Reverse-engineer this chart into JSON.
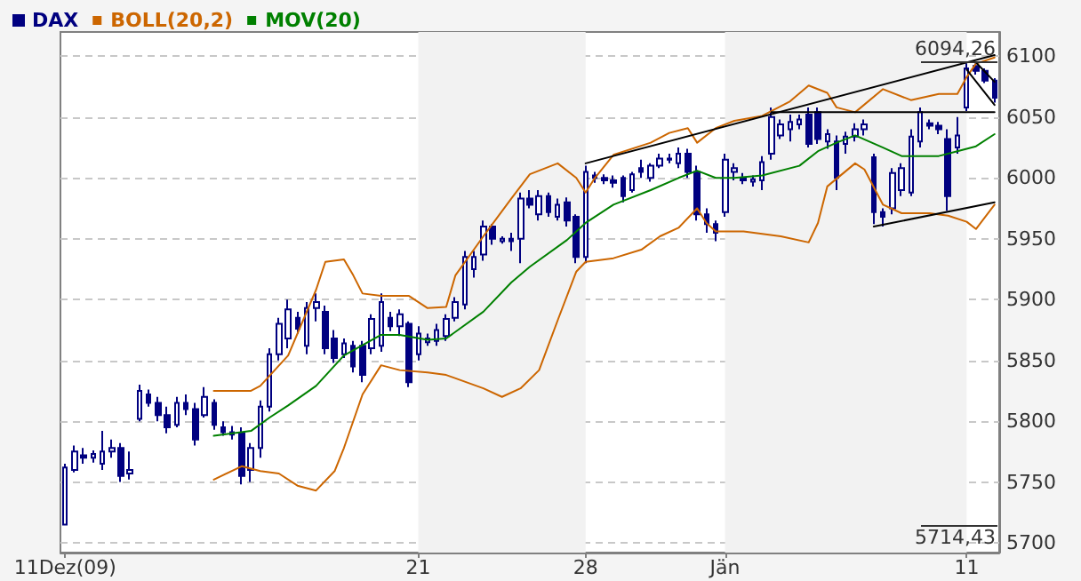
{
  "chart_data": {
    "type": "candlestick",
    "legend": "top left",
    "grid": "y",
    "marker": "none",
    "categories": [
      "11Dez(09)",
      null,
      null,
      null,
      null,
      null,
      null,
      null,
      null,
      null,
      null,
      null,
      null,
      null,
      null,
      null,
      null,
      null,
      null,
      null,
      null,
      null,
      null,
      null,
      null,
      null,
      null,
      null,
      null,
      null,
      null,
      null,
      null,
      null,
      null,
      null,
      null,
      null,
      "21",
      null,
      null,
      null,
      null,
      null,
      null,
      null,
      null,
      null,
      null,
      null,
      null,
      null,
      null,
      null,
      null,
      null,
      "28",
      null,
      null,
      null,
      null,
      null,
      null,
      null,
      null,
      null,
      null,
      null,
      null,
      null,
      null,
      "Jän",
      null,
      null,
      null,
      null,
      null,
      null,
      null,
      null,
      null,
      null,
      null,
      null,
      null,
      null,
      null,
      null,
      null,
      null,
      null,
      null,
      null,
      null,
      null,
      null,
      null,
      "11",
      null,
      null,
      null
    ],
    "ylim": [
      5692,
      6120
    ],
    "yticks": [
      5700,
      5750,
      5800,
      5850,
      5900,
      5950,
      6000,
      6050,
      6100
    ],
    "bands": [
      {
        "axis": "x",
        "from": "21",
        "to": "28",
        "color": "#f2f2f2"
      },
      {
        "axis": "x",
        "from": "Jän",
        "to": "11",
        "color": "#f2f2f2"
      }
    ],
    "annotations": [
      "6094,26",
      "5714,43"
    ],
    "series": [
      {
        "name": "DAX",
        "color": "#000080",
        "ohlc": [
          [
            5715,
            5765,
            5714.43,
            5762
          ],
          [
            5760,
            5780,
            5758,
            5775
          ],
          [
            5772,
            5778,
            5765,
            5770
          ],
          [
            5770,
            5776,
            5766,
            5773
          ],
          [
            5765,
            5792,
            5760,
            5775
          ],
          [
            5775,
            5785,
            5770,
            5778
          ],
          [
            5778,
            5782,
            5750,
            5755
          ],
          [
            5757,
            5775,
            5752,
            5760
          ],
          [
            5802,
            5830,
            5800,
            5825
          ],
          [
            5822,
            5826,
            5812,
            5815
          ],
          [
            5815,
            5820,
            5800,
            5805
          ],
          [
            5805,
            5812,
            5790,
            5795
          ],
          [
            5797,
            5820,
            5795,
            5815
          ],
          [
            5815,
            5822,
            5805,
            5810
          ],
          [
            5810,
            5815,
            5780,
            5785
          ],
          [
            5805,
            5828,
            5803,
            5820
          ],
          [
            5815,
            5818,
            5793,
            5797
          ],
          [
            5795,
            5800,
            5788,
            5791
          ],
          [
            5791,
            5796,
            5785,
            5789
          ],
          [
            5790,
            5795,
            5748,
            5755
          ],
          [
            5760,
            5782,
            5750,
            5778
          ],
          [
            5778,
            5817,
            5770,
            5812
          ],
          [
            5812,
            5860,
            5808,
            5855
          ],
          [
            5855,
            5885,
            5850,
            5880
          ],
          [
            5868,
            5900,
            5860,
            5892
          ],
          [
            5885,
            5890,
            5872,
            5876
          ],
          [
            5862,
            5898,
            5855,
            5893
          ],
          [
            5893,
            5905,
            5882,
            5898
          ],
          [
            5890,
            5895,
            5855,
            5860
          ],
          [
            5868,
            5875,
            5848,
            5852
          ],
          [
            5855,
            5868,
            5852,
            5864
          ],
          [
            5862,
            5866,
            5840,
            5845
          ],
          [
            5862,
            5866,
            5832,
            5838
          ],
          [
            5860,
            5888,
            5855,
            5884
          ],
          [
            5862,
            5905,
            5857,
            5898
          ],
          [
            5885,
            5890,
            5874,
            5878
          ],
          [
            5878,
            5892,
            5870,
            5888
          ],
          [
            5880,
            5882,
            5828,
            5832
          ],
          [
            5855,
            5878,
            5850,
            5872
          ],
          [
            5865,
            5872,
            5862,
            5868
          ],
          [
            5866,
            5880,
            5862,
            5875
          ],
          [
            5870,
            5888,
            5866,
            5884
          ],
          [
            5885,
            5902,
            5882,
            5898
          ],
          [
            5896,
            5940,
            5892,
            5935
          ],
          [
            5925,
            5940,
            5918,
            5935
          ],
          [
            5937,
            5965,
            5932,
            5960
          ],
          [
            5960,
            5962,
            5945,
            5950
          ],
          [
            5948,
            5952,
            5946,
            5950
          ],
          [
            5950,
            5955,
            5940,
            5948
          ],
          [
            5950,
            5988,
            5930,
            5983
          ],
          [
            5983,
            5990,
            5975,
            5978
          ],
          [
            5970,
            5990,
            5965,
            5985
          ],
          [
            5985,
            5988,
            5968,
            5972
          ],
          [
            5968,
            5983,
            5965,
            5978
          ],
          [
            5980,
            5984,
            5960,
            5965
          ],
          [
            5968,
            5970,
            5930,
            5935
          ],
          [
            5935,
            6010,
            5930,
            6005
          ],
          [
            6002,
            6005,
            5996,
            6000
          ],
          [
            6000,
            6003,
            5995,
            5998
          ],
          [
            5998,
            6002,
            5992,
            5996
          ],
          [
            6000,
            6002,
            5980,
            5985
          ],
          [
            5990,
            6005,
            5988,
            6003
          ],
          [
            6008,
            6015,
            6000,
            6005
          ],
          [
            6000,
            6012,
            5997,
            6010
          ],
          [
            6010,
            6020,
            6008,
            6016
          ],
          [
            6016,
            6020,
            6012,
            6015
          ],
          [
            6012,
            6025,
            6008,
            6020
          ],
          [
            6020,
            6024,
            6000,
            6005
          ],
          [
            6005,
            6010,
            5965,
            5970
          ],
          [
            5970,
            5975,
            5955,
            5962
          ],
          [
            5962,
            5965,
            5948,
            5955
          ],
          [
            5972,
            6020,
            5968,
            6015
          ],
          [
            6005,
            6012,
            5998,
            6008
          ],
          [
            6000,
            6004,
            5995,
            5998
          ],
          [
            5997,
            6002,
            5993,
            5999
          ],
          [
            5998,
            6018,
            5990,
            6013
          ],
          [
            6020,
            6058,
            6015,
            6050
          ],
          [
            6035,
            6048,
            6032,
            6044
          ],
          [
            6040,
            6052,
            6030,
            6046
          ],
          [
            6044,
            6052,
            6040,
            6048
          ],
          [
            6052,
            6058,
            6025,
            6028
          ],
          [
            6054,
            6058,
            6028,
            6032
          ],
          [
            6030,
            6040,
            6024,
            6036
          ],
          [
            6030,
            6035,
            5990,
            6000
          ],
          [
            6028,
            6038,
            6020,
            6034
          ],
          [
            6034,
            6045,
            6030,
            6040
          ],
          [
            6040,
            6048,
            6035,
            6044
          ],
          [
            6017,
            6020,
            5962,
            5972
          ],
          [
            5972,
            5975,
            5960,
            5968
          ],
          [
            5975,
            6008,
            5970,
            6004
          ],
          [
            5990,
            6012,
            5985,
            6008
          ],
          [
            5988,
            6040,
            5985,
            6034
          ],
          [
            6030,
            6058,
            6025,
            6054
          ],
          [
            6045,
            6048,
            6040,
            6043
          ],
          [
            6043,
            6046,
            6036,
            6040
          ],
          [
            6032,
            6040,
            5973,
            5985
          ],
          [
            6025,
            6050,
            6020,
            6035
          ],
          [
            6058,
            6094.26,
            6055,
            6090
          ],
          [
            6092,
            6094,
            6085,
            6088
          ],
          [
            6088,
            6090,
            6078,
            6080
          ],
          [
            6080,
            6082,
            6062,
            6066
          ]
        ]
      },
      {
        "type": "line",
        "name": "BOLL(20,2)",
        "color": "#cc6600",
        "values": [
          null,
          null,
          null,
          null,
          null,
          null,
          null,
          null,
          null,
          null,
          null,
          null,
          null,
          null,
          null,
          null,
          5825,
          null,
          null,
          null,
          5825,
          5829,
          null,
          null,
          5854,
          null,
          null,
          5908,
          5931,
          null,
          5933,
          5920,
          5905,
          null,
          5903,
          null,
          null,
          5903,
          null,
          5893,
          null,
          5894,
          5920,
          null,
          null,
          5952,
          null,
          null,
          5983,
          null,
          6003,
          null,
          null,
          6012,
          null,
          6000,
          5988,
          6000,
          null,
          6019,
          null,
          null,
          null,
          6029,
          null,
          6037,
          null,
          6041,
          6029,
          null,
          6041,
          null,
          6047,
          null,
          null,
          6051,
          null,
          null,
          6063,
          null,
          6076,
          null,
          6070,
          6058,
          null,
          6054,
          null,
          null,
          6073,
          null,
          null,
          6064,
          null,
          null,
          6069,
          null,
          6069,
          6083,
          6094,
          null,
          6099
        ]
      },
      {
        "type": "line",
        "color": "#cc6600",
        "values": [
          null,
          null,
          null,
          null,
          null,
          null,
          null,
          null,
          null,
          null,
          null,
          null,
          null,
          null,
          null,
          null,
          5752,
          null,
          null,
          5763,
          null,
          5759,
          null,
          5757,
          null,
          5747,
          null,
          5743,
          null,
          5759,
          5778,
          null,
          5822,
          null,
          5846,
          null,
          5842,
          null,
          null,
          5840,
          null,
          5838,
          null,
          null,
          null,
          5827,
          null,
          5820,
          null,
          5827,
          null,
          5842,
          null,
          5883,
          null,
          5923,
          5931,
          null,
          null,
          5934,
          null,
          null,
          5941,
          null,
          5952,
          null,
          5959,
          null,
          5975,
          5963,
          5956,
          null,
          null,
          5956,
          null,
          null,
          null,
          5952,
          null,
          null,
          5947,
          5963,
          5993,
          null,
          null,
          6012,
          6007,
          null,
          5978,
          null,
          5971,
          null,
          null,
          5971,
          null,
          5969,
          null,
          5964,
          5958,
          null,
          5978
        ]
      },
      {
        "type": "line",
        "name": "MOV(20)",
        "color": "#008000",
        "values": [
          null,
          null,
          null,
          null,
          null,
          null,
          null,
          null,
          null,
          null,
          null,
          null,
          null,
          null,
          null,
          null,
          5788,
          null,
          null,
          null,
          5792,
          null,
          5803,
          null,
          5813,
          null,
          null,
          5829,
          null,
          null,
          5854,
          null,
          null,
          null,
          5871,
          null,
          5871,
          null,
          null,
          5867,
          null,
          5868,
          null,
          null,
          null,
          5890,
          null,
          null,
          5914,
          null,
          5927,
          null,
          null,
          null,
          5949,
          null,
          5963,
          null,
          null,
          5978,
          null,
          null,
          null,
          5990,
          null,
          null,
          6000,
          null,
          6006,
          null,
          6000,
          null,
          6000,
          null,
          null,
          6002,
          null,
          null,
          null,
          6010,
          null,
          6022,
          null,
          6029,
          null,
          6035,
          null,
          null,
          6025,
          null,
          6018,
          null,
          null,
          null,
          6018,
          null,
          6022,
          null,
          6026,
          null,
          6036
        ]
      },
      {
        "type": "line",
        "color": "#000000",
        "values": [
          null,
          null,
          null,
          null,
          null,
          null,
          null,
          null,
          null,
          null,
          null,
          null,
          null,
          null,
          null,
          null,
          null,
          null,
          null,
          null,
          null,
          null,
          null,
          null,
          null,
          null,
          null,
          null,
          null,
          null,
          null,
          null,
          null,
          null,
          null,
          null,
          null,
          null,
          null,
          null,
          null,
          null,
          null,
          null,
          null,
          null,
          null,
          null,
          null,
          null,
          null,
          null,
          null,
          null,
          null,
          null,
          6012,
          null,
          null,
          null,
          null,
          null,
          null,
          null,
          null,
          null,
          null,
          null,
          null,
          null,
          null,
          null,
          null,
          null,
          null,
          null,
          null,
          null,
          null,
          null,
          null,
          null,
          null,
          null,
          null,
          null,
          null,
          null,
          null,
          null,
          null,
          null,
          null,
          null,
          null,
          null,
          null,
          null,
          null,
          null,
          6101
        ]
      },
      {
        "type": "line",
        "color": "#000000",
        "values": [
          null,
          null,
          null,
          null,
          null,
          null,
          null,
          null,
          null,
          null,
          null,
          null,
          null,
          null,
          null,
          null,
          null,
          null,
          null,
          null,
          null,
          null,
          null,
          null,
          null,
          null,
          null,
          null,
          null,
          null,
          null,
          null,
          null,
          null,
          null,
          null,
          null,
          null,
          null,
          null,
          null,
          null,
          null,
          null,
          null,
          null,
          null,
          null,
          null,
          null,
          null,
          null,
          null,
          null,
          null,
          null,
          null,
          null,
          null,
          null,
          null,
          null,
          null,
          null,
          null,
          null,
          null,
          null,
          null,
          null,
          null,
          null,
          null,
          null,
          null,
          null,
          6054,
          null,
          null,
          null,
          null,
          null,
          null,
          null,
          null,
          null,
          null,
          null,
          null,
          null,
          null,
          null,
          null,
          null,
          null,
          null,
          null,
          null,
          null,
          null,
          6054
        ]
      },
      {
        "type": "line",
        "color": "#000000",
        "values": [
          null,
          null,
          null,
          null,
          null,
          null,
          null,
          null,
          null,
          null,
          null,
          null,
          null,
          null,
          null,
          null,
          null,
          null,
          null,
          null,
          null,
          null,
          null,
          null,
          null,
          null,
          null,
          null,
          null,
          null,
          null,
          null,
          null,
          null,
          null,
          null,
          null,
          null,
          null,
          null,
          null,
          null,
          null,
          null,
          null,
          null,
          null,
          null,
          null,
          null,
          null,
          null,
          null,
          null,
          null,
          null,
          null,
          null,
          null,
          null,
          null,
          null,
          null,
          null,
          null,
          null,
          null,
          null,
          null,
          null,
          null,
          null,
          null,
          null,
          null,
          null,
          null,
          null,
          null,
          null,
          null,
          null,
          null,
          null,
          null,
          null,
          null,
          5960,
          null,
          null,
          null,
          null,
          null,
          null,
          null,
          null,
          null,
          null,
          null,
          null,
          5980
        ]
      },
      {
        "type": "line",
        "color": "#000000",
        "values": [
          null,
          null,
          null,
          null,
          null,
          null,
          null,
          null,
          null,
          null,
          null,
          null,
          null,
          null,
          null,
          null,
          null,
          null,
          null,
          null,
          null,
          null,
          null,
          null,
          null,
          null,
          null,
          null,
          null,
          null,
          null,
          null,
          null,
          null,
          null,
          null,
          null,
          null,
          null,
          null,
          null,
          null,
          null,
          null,
          null,
          null,
          null,
          null,
          null,
          null,
          null,
          null,
          null,
          null,
          null,
          null,
          null,
          null,
          null,
          null,
          null,
          null,
          null,
          null,
          null,
          null,
          null,
          null,
          null,
          null,
          null,
          null,
          null,
          null,
          null,
          null,
          null,
          null,
          null,
          null,
          null,
          null,
          null,
          null,
          null,
          null,
          null,
          null,
          null,
          null,
          null,
          null,
          null,
          null,
          null,
          null,
          null,
          null,
          6095,
          null,
          6079
        ]
      },
      {
        "type": "line",
        "color": "#000000",
        "values": [
          null,
          null,
          null,
          null,
          null,
          null,
          null,
          null,
          null,
          null,
          null,
          null,
          null,
          null,
          null,
          null,
          null,
          null,
          null,
          null,
          null,
          null,
          null,
          null,
          null,
          null,
          null,
          null,
          null,
          null,
          null,
          null,
          null,
          null,
          null,
          null,
          null,
          null,
          null,
          null,
          null,
          null,
          null,
          null,
          null,
          null,
          null,
          null,
          null,
          null,
          null,
          null,
          null,
          null,
          null,
          null,
          null,
          null,
          null,
          null,
          null,
          null,
          null,
          null,
          null,
          null,
          null,
          null,
          null,
          null,
          null,
          null,
          null,
          null,
          null,
          null,
          null,
          null,
          null,
          null,
          null,
          null,
          null,
          null,
          null,
          null,
          null,
          null,
          null,
          null,
          null,
          null,
          null,
          null,
          null,
          null,
          null,
          6089,
          null,
          null,
          6060
        ]
      }
    ]
  }
}
